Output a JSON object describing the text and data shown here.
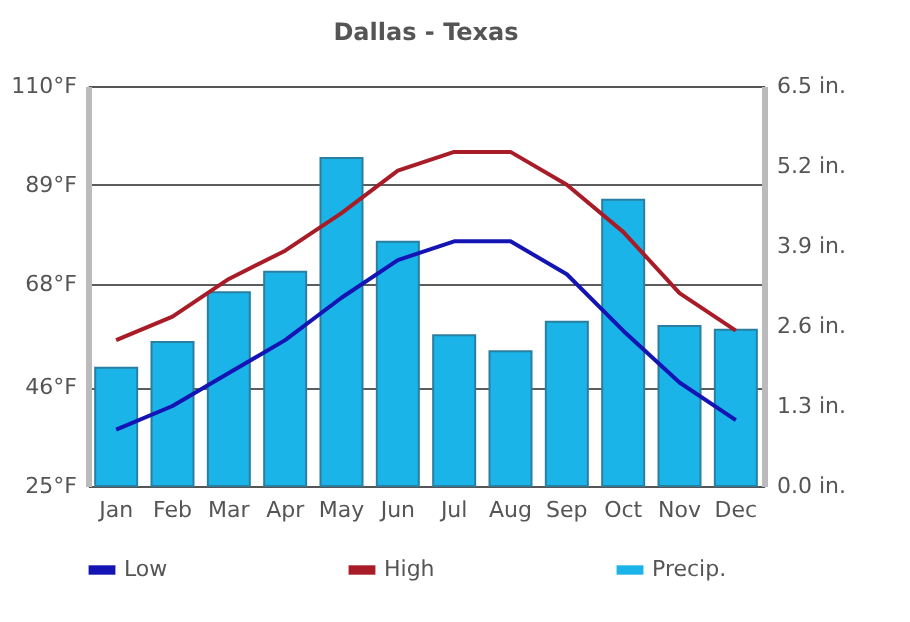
{
  "chart_data": {
    "type": "line",
    "title": "Dallas - Texas",
    "categories": [
      "Jan",
      "Feb",
      "Mar",
      "Apr",
      "May",
      "Jun",
      "Jul",
      "Aug",
      "Sep",
      "Oct",
      "Nov",
      "Dec"
    ],
    "series": [
      {
        "name": "Low",
        "color": "#1414b4",
        "values": [
          37,
          42,
          49,
          56,
          65,
          73,
          77,
          77,
          70,
          58,
          47,
          39
        ]
      },
      {
        "name": "High",
        "color": "#a81c28",
        "values": [
          56,
          61,
          69,
          75,
          83,
          92,
          96,
          96,
          89,
          79,
          66,
          58
        ]
      },
      {
        "name": "Precip.",
        "color": "#1ab4e8",
        "type": "bar",
        "axis": "y2",
        "values": [
          1.92,
          2.34,
          3.15,
          3.48,
          5.33,
          3.97,
          2.45,
          2.19,
          2.67,
          4.65,
          2.6,
          2.54
        ]
      }
    ],
    "ylim": [
      25,
      110
    ],
    "yticks": [
      {
        "value": 25,
        "label": "25°F"
      },
      {
        "value": 46,
        "label": "46°F"
      },
      {
        "value": 68,
        "label": "68°F"
      },
      {
        "value": 89,
        "label": "89°F"
      },
      {
        "value": 110,
        "label": "110°F"
      }
    ],
    "y2lim": [
      0,
      6.5
    ],
    "y2ticks": [
      {
        "value": 0,
        "label": "0.0 in."
      },
      {
        "value": 1.3,
        "label": "1.3 in."
      },
      {
        "value": 2.6,
        "label": "2.6 in."
      },
      {
        "value": 3.9,
        "label": "3.9 in."
      },
      {
        "value": 5.2,
        "label": "5.2 in."
      },
      {
        "value": 6.5,
        "label": "6.5 in."
      }
    ],
    "grid": "y",
    "legend": "bottom"
  }
}
